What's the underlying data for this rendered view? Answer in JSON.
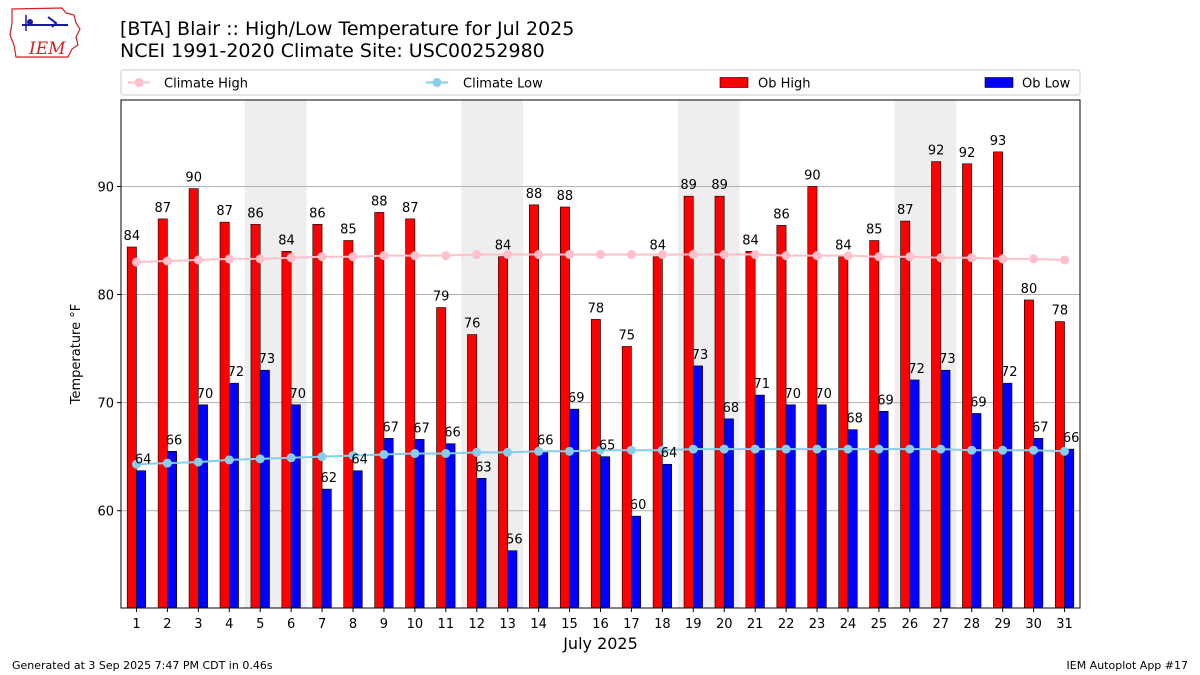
{
  "title_line1": "[BTA] Blair :: High/Low Temperature for Jul 2025",
  "title_line2": "NCEI 1991-2020 Climate Site: USC00252980",
  "logo_text": "IEM",
  "footer_left": "Generated at 3 Sep 2025 7:47 PM CDT in 0.46s",
  "footer_right": "IEM Autoplot App #17",
  "colors": {
    "ob_high": "#ff0000",
    "ob_low": "#0000ff",
    "climate_high": "#ffc0cb",
    "climate_low": "#87ceeb",
    "weekend_shade": "#eeeeee",
    "grid": "#b0b0b0"
  },
  "chart_data": {
    "type": "bar",
    "xlabel": "July 2025",
    "ylabel": "Temperature °F",
    "ylim": [
      51,
      98
    ],
    "yticks": [
      60,
      70,
      80,
      90
    ],
    "grid": "horizontal",
    "legend_position": "top",
    "categories": [
      "1",
      "2",
      "3",
      "4",
      "5",
      "6",
      "7",
      "8",
      "9",
      "10",
      "11",
      "12",
      "13",
      "14",
      "15",
      "16",
      "17",
      "18",
      "19",
      "20",
      "21",
      "22",
      "23",
      "24",
      "25",
      "26",
      "27",
      "28",
      "29",
      "30",
      "31"
    ],
    "shaded_days": [
      5,
      6,
      12,
      13,
      19,
      20,
      26,
      27
    ],
    "series": [
      {
        "name": "Ob High",
        "kind": "bar",
        "values": [
          84.4,
          87.0,
          89.8,
          86.7,
          86.5,
          84.0,
          86.5,
          85.0,
          87.6,
          87.0,
          78.8,
          76.3,
          83.5,
          88.3,
          88.1,
          77.7,
          75.2,
          83.5,
          89.1,
          89.1,
          84.0,
          86.4,
          90.0,
          83.5,
          85.0,
          86.8,
          92.3,
          92.1,
          93.2,
          79.5,
          77.5
        ],
        "labels": [
          "84",
          "87",
          "90",
          "87",
          "86",
          "84",
          "86",
          "85",
          "88",
          "87",
          "79",
          "76",
          "84",
          "88",
          "88",
          "78",
          "75",
          "84",
          "89",
          "89",
          "84",
          "86",
          "90",
          "84",
          "85",
          "87",
          "92",
          "92",
          "93",
          "80",
          "78"
        ]
      },
      {
        "name": "Ob Low",
        "kind": "bar",
        "values": [
          63.7,
          65.5,
          69.8,
          71.8,
          73.0,
          69.8,
          62.0,
          63.7,
          66.7,
          66.6,
          66.2,
          63.0,
          56.3,
          65.5,
          69.4,
          65.0,
          59.5,
          64.3,
          73.4,
          68.5,
          70.7,
          69.8,
          69.8,
          67.5,
          69.2,
          72.1,
          73.0,
          69.0,
          71.8,
          66.7,
          65.7
        ],
        "labels": [
          "64",
          "66",
          "70",
          "72",
          "73",
          "70",
          "62",
          "64",
          "67",
          "67",
          "66",
          "63",
          "56",
          "66",
          "69",
          "65",
          "60",
          "64",
          "73",
          "68",
          "71",
          "70",
          "70",
          "68",
          "69",
          "72",
          "73",
          "69",
          "72",
          "67",
          "66"
        ]
      },
      {
        "name": "Climate High",
        "kind": "line",
        "values": [
          83.0,
          83.1,
          83.2,
          83.3,
          83.3,
          83.4,
          83.5,
          83.5,
          83.6,
          83.6,
          83.6,
          83.7,
          83.7,
          83.7,
          83.7,
          83.7,
          83.7,
          83.7,
          83.7,
          83.7,
          83.7,
          83.6,
          83.6,
          83.6,
          83.5,
          83.5,
          83.4,
          83.4,
          83.3,
          83.3,
          83.2
        ]
      },
      {
        "name": "Climate Low",
        "kind": "line",
        "values": [
          64.3,
          64.4,
          64.5,
          64.7,
          64.8,
          64.9,
          65.0,
          65.1,
          65.2,
          65.3,
          65.3,
          65.4,
          65.4,
          65.5,
          65.5,
          65.6,
          65.6,
          65.6,
          65.7,
          65.7,
          65.7,
          65.7,
          65.7,
          65.7,
          65.7,
          65.7,
          65.7,
          65.6,
          65.6,
          65.6,
          65.5
        ]
      }
    ]
  }
}
